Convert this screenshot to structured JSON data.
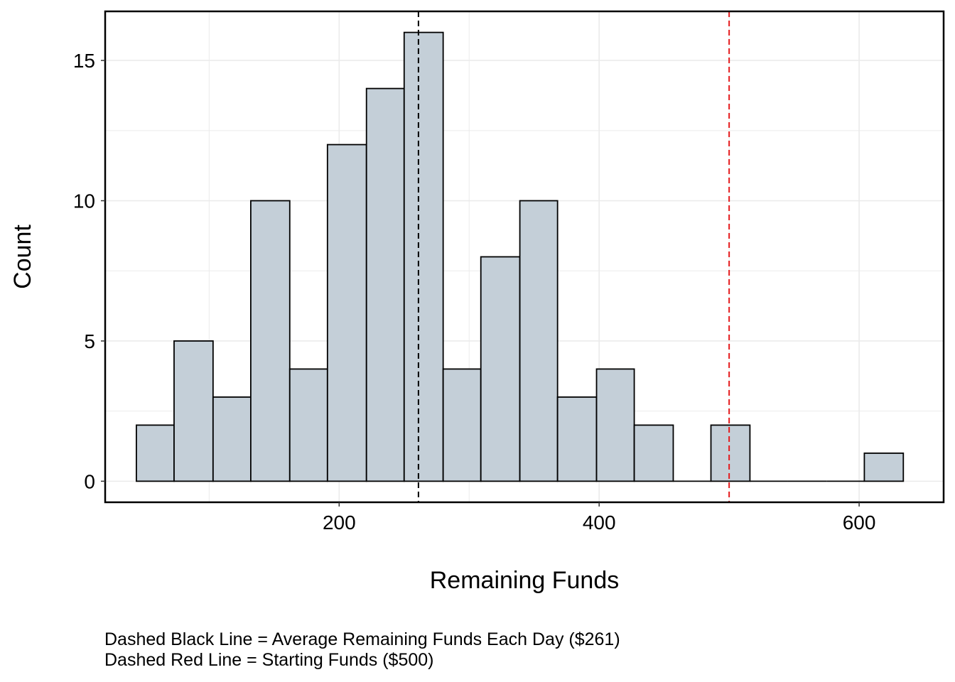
{
  "chart_data": {
    "type": "bar",
    "subtype": "histogram",
    "xlabel": "Remaining Funds",
    "ylabel": "Count",
    "xlim": [
      20,
      665
    ],
    "ylim": [
      -0.75,
      16.75
    ],
    "x_ticks": [
      200,
      400,
      600
    ],
    "y_ticks": [
      0,
      5,
      10,
      15
    ],
    "grid": true,
    "bins": [
      {
        "x0": 44,
        "x1": 73,
        "count": 2
      },
      {
        "x0": 73,
        "x1": 103,
        "count": 5
      },
      {
        "x0": 103,
        "x1": 132,
        "count": 3
      },
      {
        "x0": 132,
        "x1": 162,
        "count": 10
      },
      {
        "x0": 162,
        "x1": 191,
        "count": 4
      },
      {
        "x0": 191,
        "x1": 221,
        "count": 12
      },
      {
        "x0": 221,
        "x1": 250,
        "count": 14
      },
      {
        "x0": 250,
        "x1": 280,
        "count": 16
      },
      {
        "x0": 280,
        "x1": 309,
        "count": 4
      },
      {
        "x0": 309,
        "x1": 339,
        "count": 8
      },
      {
        "x0": 339,
        "x1": 368,
        "count": 10
      },
      {
        "x0": 368,
        "x1": 398,
        "count": 3
      },
      {
        "x0": 398,
        "x1": 427,
        "count": 4
      },
      {
        "x0": 427,
        "x1": 457,
        "count": 2
      },
      {
        "x0": 457,
        "x1": 486,
        "count": 0
      },
      {
        "x0": 486,
        "x1": 516,
        "count": 2
      },
      {
        "x0": 516,
        "x1": 545,
        "count": 0
      },
      {
        "x0": 545,
        "x1": 575,
        "count": 0
      },
      {
        "x0": 575,
        "x1": 604,
        "count": 0
      },
      {
        "x0": 604,
        "x1": 634,
        "count": 1
      }
    ],
    "reference_lines": [
      {
        "x": 261,
        "color": "#000000",
        "style": "dashed"
      },
      {
        "x": 500,
        "color": "#e41a1c",
        "style": "dashed"
      }
    ],
    "bar_fill": "#c4cfd8",
    "bar_stroke": "#000000",
    "caption": [
      "Dashed Black Line = Average Remaining Funds Each Day ($261)",
      "Dashed Red Line = Starting Funds ($500)"
    ]
  }
}
